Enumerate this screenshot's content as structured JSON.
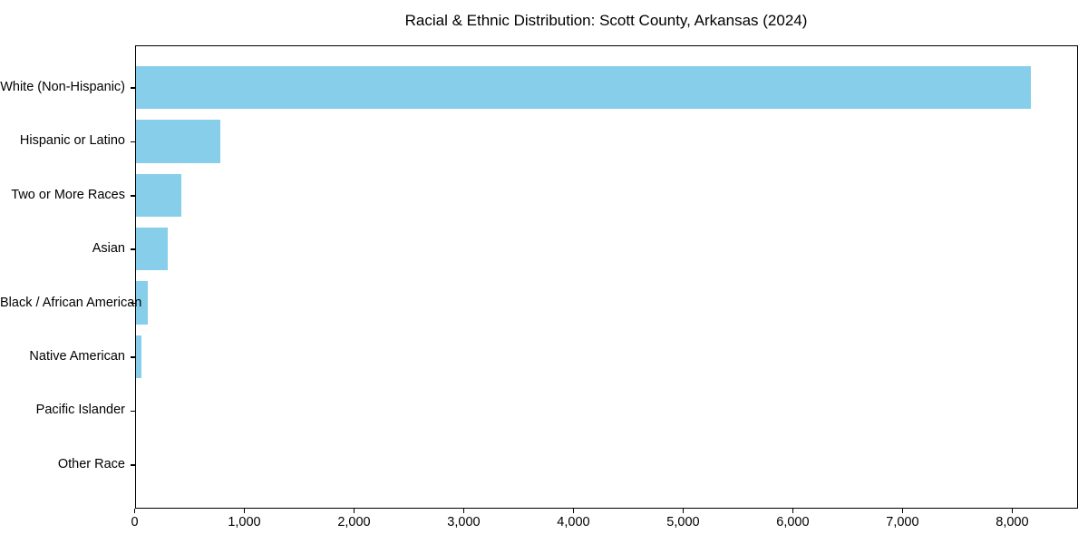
{
  "chart_data": {
    "type": "bar",
    "orientation": "horizontal",
    "title": "Racial & Ethnic Distribution: Scott County, Arkansas (2024)",
    "categories": [
      "White (Non-Hispanic)",
      "Hispanic or Latino",
      "Two or More Races",
      "Asian",
      "Black / African American",
      "Native American",
      "Pacific Islander",
      "Other Race"
    ],
    "values": [
      8160,
      775,
      415,
      290,
      110,
      50,
      0,
      0
    ],
    "bar_color": "#87CEEB",
    "axis_color": "#000000",
    "text_color": "#000000",
    "xlabel": "",
    "ylabel": "",
    "xlim": [
      0,
      8600
    ],
    "xticks": [
      0,
      1000,
      2000,
      3000,
      4000,
      5000,
      6000,
      7000,
      8000
    ],
    "xtick_labels": [
      "0",
      "1,000",
      "2,000",
      "3,000",
      "4,000",
      "5,000",
      "6,000",
      "7,000",
      "8,000"
    ],
    "grid": false,
    "legend": null
  }
}
